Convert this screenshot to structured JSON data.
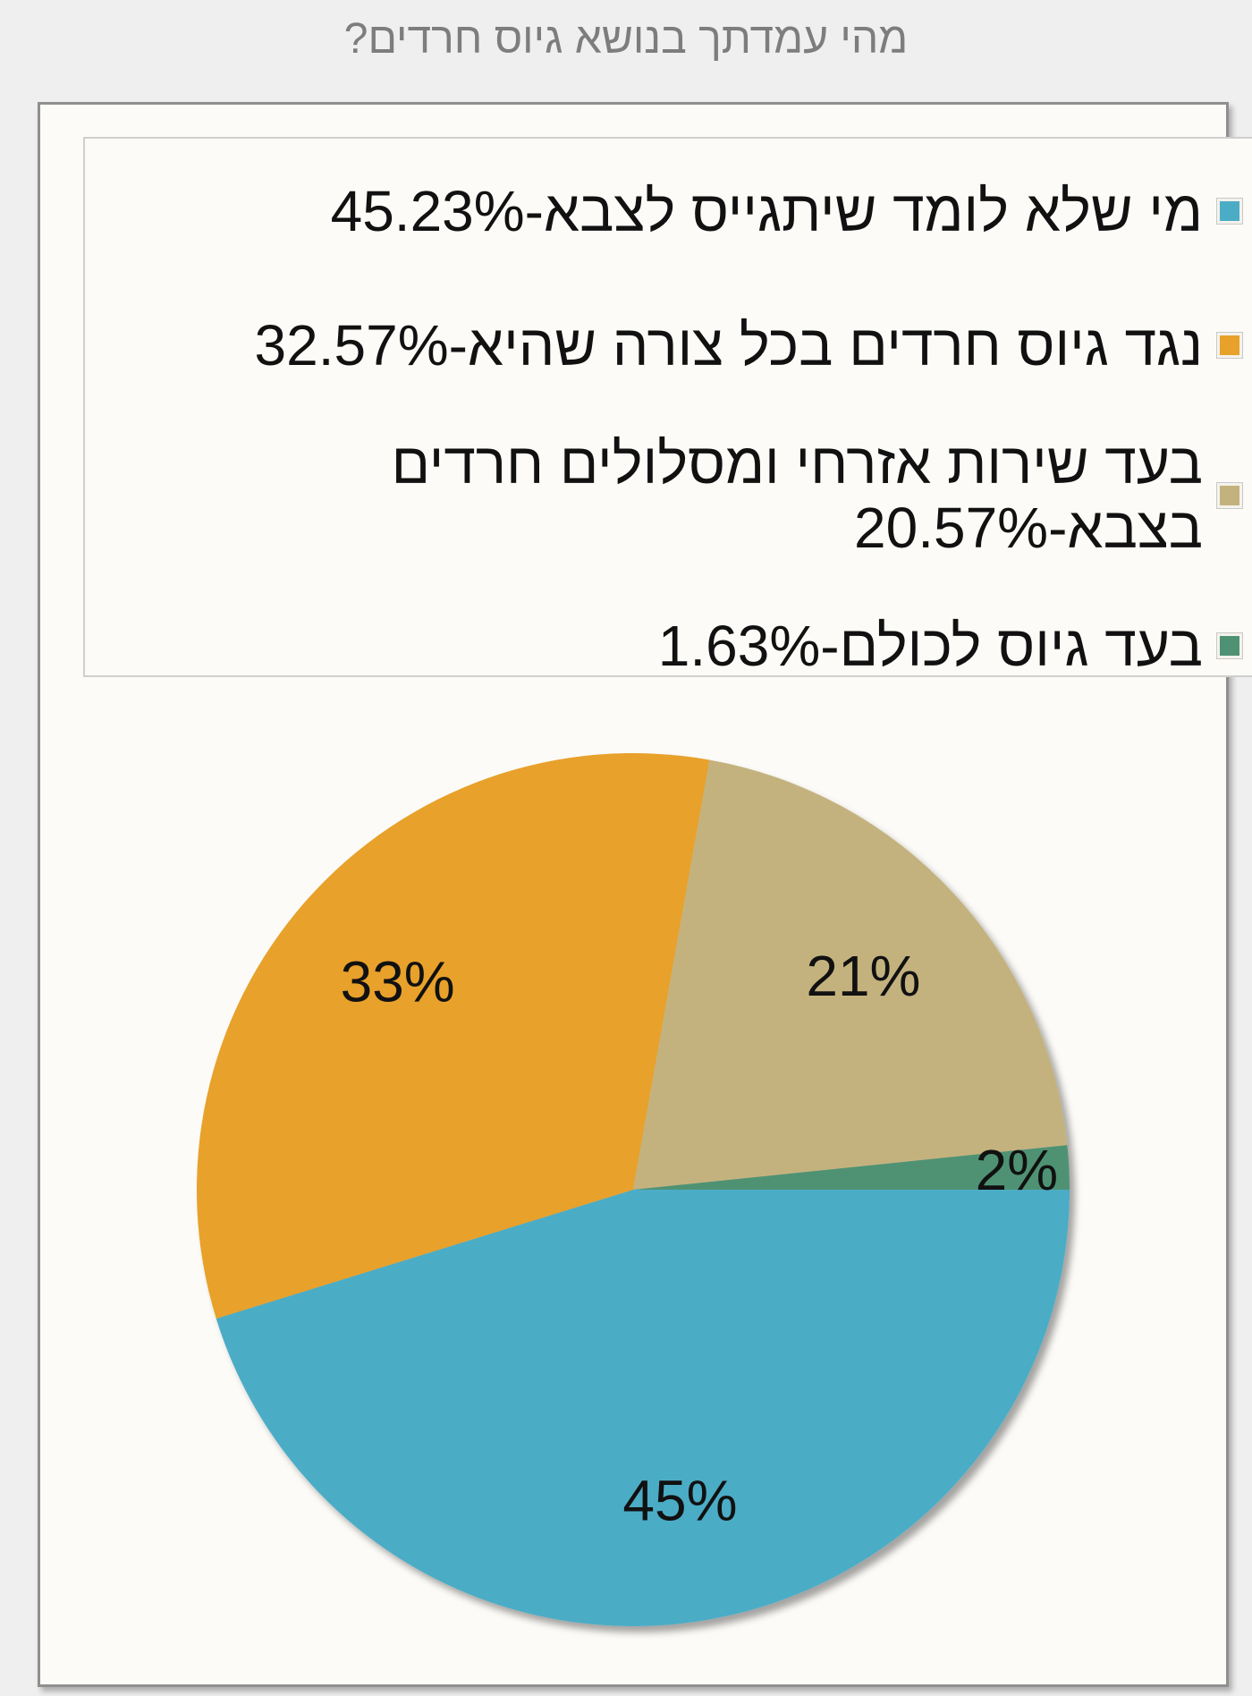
{
  "title": "מהי עמדתך בנושא גיוס חרדים?",
  "chart_data": {
    "type": "pie",
    "title": "מהי עמדתך בנושא גיוס חרדים?",
    "slices": [
      {
        "label": "מי שלא לומד שיתגייס לצבא-45.23%",
        "value": 45.23,
        "display": "45%",
        "color": "#4bacc6"
      },
      {
        "label": "נגד גיוס חרדים בכל צורה שהיא-32.57%",
        "value": 32.57,
        "display": "33%",
        "color": "#e8a12b"
      },
      {
        "label": "בעד שירות אזרחי ומסלולים חרדים בצבא-20.57%",
        "value": 20.57,
        "display": "21%",
        "color": "#c4b27e"
      },
      {
        "label": "בעד גיוס לכולם-1.63%",
        "value": 1.63,
        "display": "2%",
        "color": "#4f9273"
      }
    ],
    "legend_position": "top"
  }
}
